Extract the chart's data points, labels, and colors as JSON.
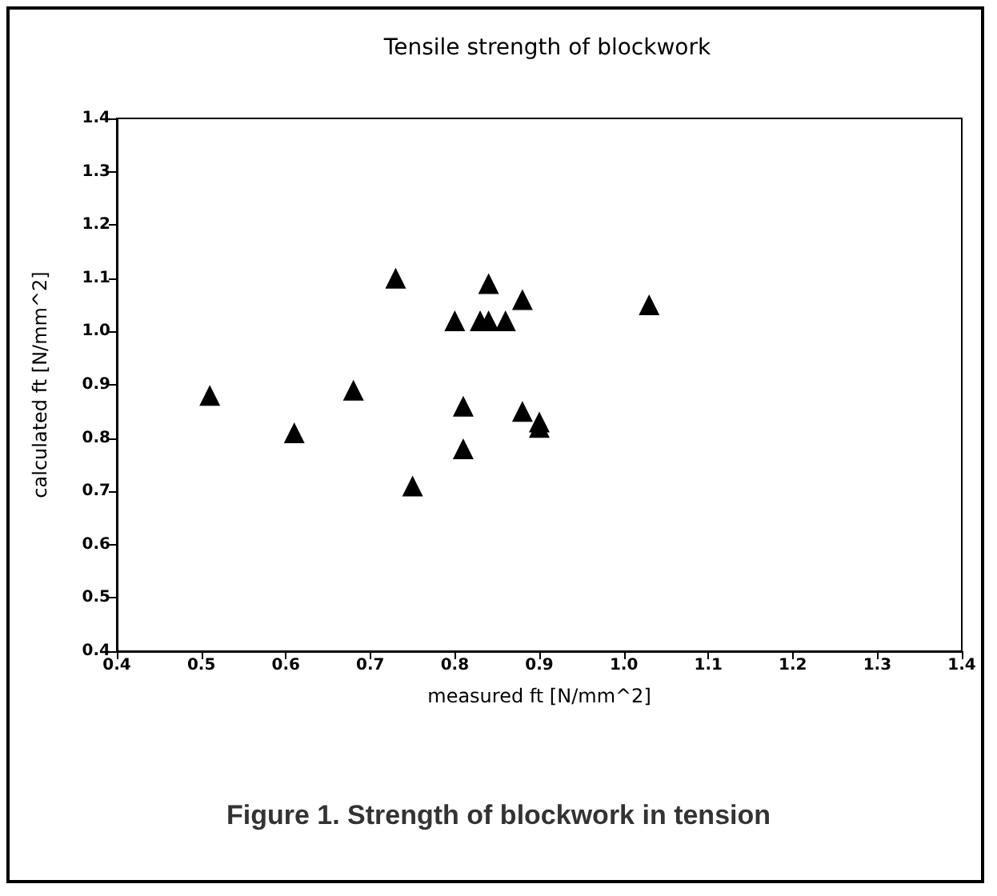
{
  "chart_data": {
    "type": "scatter",
    "title": "Tensile strength of blockwork",
    "xlabel": "measured ft [N/mm^2]",
    "ylabel": "calculated ft [N/mm^2]",
    "annotations": [
      "Figure 1. Strength of blockwork in tension"
    ],
    "x": [
      0.51,
      0.61,
      0.68,
      0.73,
      0.75,
      0.8,
      0.81,
      0.81,
      0.83,
      0.84,
      0.84,
      0.86,
      0.88,
      0.88,
      0.9,
      0.9,
      1.03
    ],
    "series": [
      {
        "color": "#000000",
        "values": [
          0.88,
          0.81,
          0.89,
          1.1,
          0.71,
          1.02,
          0.86,
          0.78,
          1.02,
          1.09,
          1.02,
          1.02,
          1.06,
          0.85,
          0.83,
          0.82,
          1.05
        ]
      }
    ],
    "xlim": [
      0.4,
      1.4
    ],
    "ylim": [
      0.4,
      1.4
    ],
    "xticks": [
      0.4,
      0.5,
      0.6,
      0.7,
      0.8,
      0.9,
      {
        "value": 1,
        "label": "1.0"
      },
      1.1,
      1.2,
      1.3,
      1.4
    ],
    "yticks": [
      0.4,
      0.5,
      0.6,
      0.7,
      0.8,
      0.9,
      {
        "value": 1,
        "label": "1.0"
      },
      1.1,
      1.2,
      1.3,
      1.4
    ],
    "marker": "triangle",
    "grid": false
  }
}
